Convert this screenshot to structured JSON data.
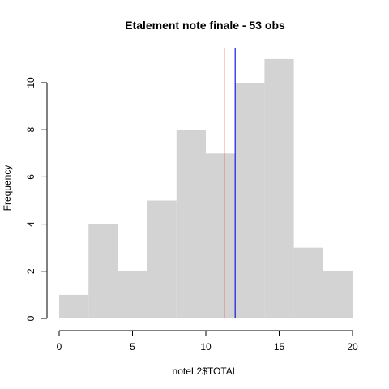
{
  "chart_data": {
    "type": "bar",
    "subtype": "histogram",
    "title": "Etalement note finale - 53 obs",
    "xlabel": "noteL2$TOTAL",
    "ylabel": "Frequency",
    "bins": [
      {
        "from": 0,
        "to": 2,
        "count": 1
      },
      {
        "from": 2,
        "to": 4,
        "count": 4
      },
      {
        "from": 4,
        "to": 6,
        "count": 2
      },
      {
        "from": 6,
        "to": 8,
        "count": 5
      },
      {
        "from": 8,
        "to": 10,
        "count": 8
      },
      {
        "from": 10,
        "to": 12,
        "count": 7
      },
      {
        "from": 12,
        "to": 14,
        "count": 10
      },
      {
        "from": 14,
        "to": 16,
        "count": 11
      },
      {
        "from": 16,
        "to": 18,
        "count": 3
      },
      {
        "from": 18,
        "to": 20,
        "count": 2
      }
    ],
    "xlim": [
      0,
      20
    ],
    "ylim": [
      0,
      11
    ],
    "xticks": [
      "0",
      "5",
      "10",
      "15",
      "20"
    ],
    "yticks": [
      "0",
      "2",
      "4",
      "6",
      "8",
      "10"
    ],
    "vlines": [
      {
        "x": 11.25,
        "color": "#e31a1c"
      },
      {
        "x": 12.0,
        "color": "#1a1ae3"
      }
    ],
    "bar_color": "#d3d3d3",
    "grid": false,
    "legend": "none"
  }
}
